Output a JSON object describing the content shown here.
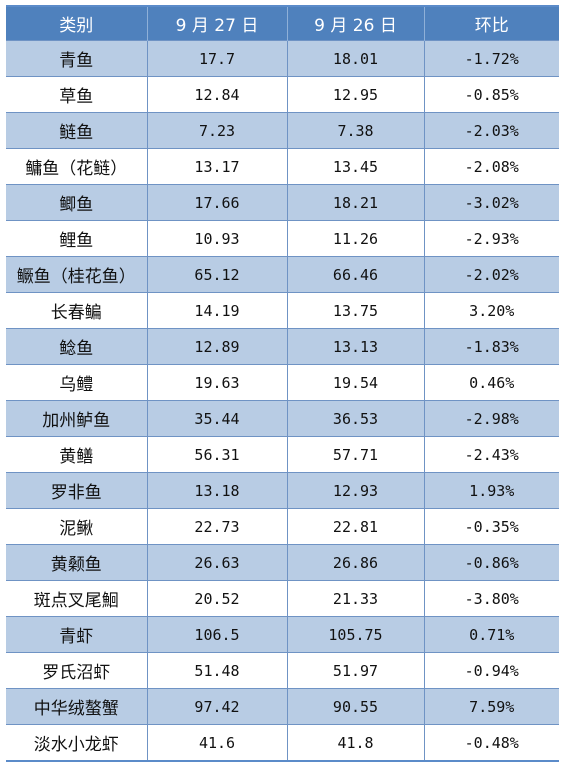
{
  "headers": [
    "类别",
    "9 月 27 日",
    "9 月 26 日",
    "环比"
  ],
  "rows": [
    {
      "name": "青鱼",
      "d27": "17.7",
      "d26": "18.01",
      "change": "-1.72%"
    },
    {
      "name": "草鱼",
      "d27": "12.84",
      "d26": "12.95",
      "change": "-0.85%"
    },
    {
      "name": "鲢鱼",
      "d27": "7.23",
      "d26": "7.38",
      "change": "-2.03%"
    },
    {
      "name": "鳙鱼（花鲢）",
      "d27": "13.17",
      "d26": "13.45",
      "change": "-2.08%"
    },
    {
      "name": "鲫鱼",
      "d27": "17.66",
      "d26": "18.21",
      "change": "-3.02%"
    },
    {
      "name": "鲤鱼",
      "d27": "10.93",
      "d26": "11.26",
      "change": "-2.93%"
    },
    {
      "name": "鳜鱼（桂花鱼）",
      "d27": "65.12",
      "d26": "66.46",
      "change": "-2.02%"
    },
    {
      "name": "长春鳊",
      "d27": "14.19",
      "d26": "13.75",
      "change": "3.20%"
    },
    {
      "name": "鲶鱼",
      "d27": "12.89",
      "d26": "13.13",
      "change": "-1.83%"
    },
    {
      "name": "乌鳢",
      "d27": "19.63",
      "d26": "19.54",
      "change": "0.46%"
    },
    {
      "name": "加州鲈鱼",
      "d27": "35.44",
      "d26": "36.53",
      "change": "-2.98%"
    },
    {
      "name": "黄鳝",
      "d27": "56.31",
      "d26": "57.71",
      "change": "-2.43%"
    },
    {
      "name": "罗非鱼",
      "d27": "13.18",
      "d26": "12.93",
      "change": "1.93%"
    },
    {
      "name": "泥鳅",
      "d27": "22.73",
      "d26": "22.81",
      "change": "-0.35%"
    },
    {
      "name": "黄颡鱼",
      "d27": "26.63",
      "d26": "26.86",
      "change": "-0.86%"
    },
    {
      "name": "斑点叉尾鮰",
      "d27": "20.52",
      "d26": "21.33",
      "change": "-3.80%"
    },
    {
      "name": "青虾",
      "d27": "106.5",
      "d26": "105.75",
      "change": "0.71%"
    },
    {
      "name": "罗氏沼虾",
      "d27": "51.48",
      "d26": "51.97",
      "change": "-0.94%"
    },
    {
      "name": "中华绒螯蟹",
      "d27": "97.42",
      "d26": "90.55",
      "change": "7.59%"
    },
    {
      "name": "淡水小龙虾",
      "d27": "41.6",
      "d26": "41.8",
      "change": "-0.48%"
    }
  ],
  "colors": {
    "header_bg": "#4f81bd",
    "band_bg": "#b8cce4",
    "header_text": "#ffffff"
  }
}
